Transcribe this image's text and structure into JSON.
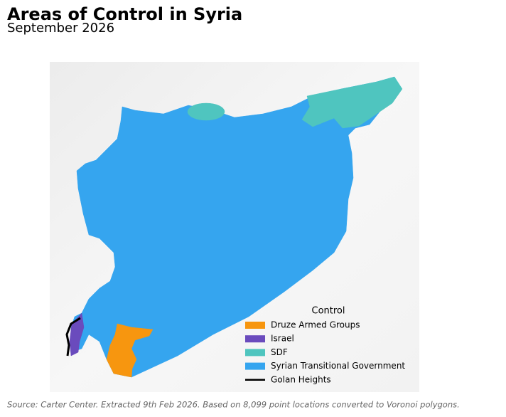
{
  "title": "Areas of Control in Syria",
  "subtitle": "September 2026",
  "legend": {
    "title": "Control",
    "items": [
      {
        "label": "Druze Armed Groups",
        "color": "#f7960f",
        "style": "patch"
      },
      {
        "label": "Israel",
        "color": "#6a4bbd",
        "style": "patch"
      },
      {
        "label": "SDF",
        "color": "#4fc5bf",
        "style": "patch"
      },
      {
        "label": "Syrian Transitional Government",
        "color": "#35a5ef",
        "style": "patch"
      },
      {
        "label": "Golan Heights",
        "color": "#000000",
        "style": "line"
      }
    ]
  },
  "source": "Source: Carter Center. Extracted 9th Feb 2026. Based on 8,099 point locations converted to Voronoi polygons."
}
